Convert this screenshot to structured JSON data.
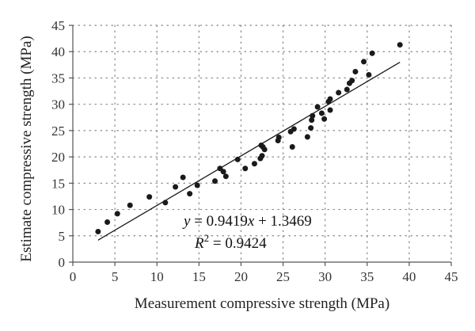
{
  "chart_data": {
    "type": "scatter",
    "title": "",
    "xlabel": "Measurement compressive strength (MPa)",
    "ylabel": "Estimate compressive strength (MPa)",
    "xlim": [
      0,
      45
    ],
    "ylim": [
      0,
      45
    ],
    "xticks": [
      0,
      5,
      10,
      15,
      20,
      25,
      30,
      35,
      40,
      45
    ],
    "yticks": [
      0,
      5,
      10,
      15,
      20,
      25,
      30,
      35,
      40,
      45
    ],
    "grid": "dotted",
    "colors": {
      "points": "#1a1a1a",
      "line": "#1a1a1a",
      "axis": "#555555",
      "grid": "#888888"
    },
    "points": [
      [
        3.0,
        5.8
      ],
      [
        4.1,
        7.6
      ],
      [
        5.3,
        9.2
      ],
      [
        6.8,
        10.8
      ],
      [
        9.1,
        12.4
      ],
      [
        11.0,
        11.3
      ],
      [
        12.2,
        14.3
      ],
      [
        13.1,
        16.1
      ],
      [
        13.9,
        13.0
      ],
      [
        14.8,
        14.6
      ],
      [
        16.9,
        15.4
      ],
      [
        17.5,
        17.8
      ],
      [
        17.9,
        17.2
      ],
      [
        18.2,
        16.3
      ],
      [
        19.6,
        19.5
      ],
      [
        20.5,
        17.8
      ],
      [
        21.6,
        18.7
      ],
      [
        22.3,
        19.7
      ],
      [
        22.5,
        20.2
      ],
      [
        22.4,
        22.2
      ],
      [
        22.8,
        21.4
      ],
      [
        22.6,
        21.9
      ],
      [
        24.4,
        23.1
      ],
      [
        24.5,
        23.7
      ],
      [
        25.9,
        24.8
      ],
      [
        26.1,
        21.9
      ],
      [
        26.3,
        25.3
      ],
      [
        27.9,
        23.8
      ],
      [
        28.3,
        25.5
      ],
      [
        28.4,
        27.0
      ],
      [
        28.5,
        27.8
      ],
      [
        29.1,
        29.5
      ],
      [
        29.6,
        28.3
      ],
      [
        29.9,
        27.2
      ],
      [
        30.4,
        30.5
      ],
      [
        30.6,
        31.0
      ],
      [
        30.6,
        28.9
      ],
      [
        31.6,
        32.2
      ],
      [
        32.6,
        32.8
      ],
      [
        32.9,
        34.0
      ],
      [
        33.2,
        34.5
      ],
      [
        33.6,
        36.2
      ],
      [
        34.6,
        38.1
      ],
      [
        35.2,
        35.6
      ],
      [
        35.6,
        39.7
      ],
      [
        38.9,
        41.3
      ]
    ],
    "trendline": {
      "slope": 0.9419,
      "intercept": 1.3469,
      "x_start": 3.0,
      "x_end": 38.9
    },
    "annotation": {
      "eq_prefix": "y",
      "eq_rest": " = 0.9419",
      "eq_x": "x",
      "eq_tail": " + 1.3469",
      "r2_r": "R",
      "r2_exp": "2",
      "r2_rest": " = 0.9424"
    }
  }
}
